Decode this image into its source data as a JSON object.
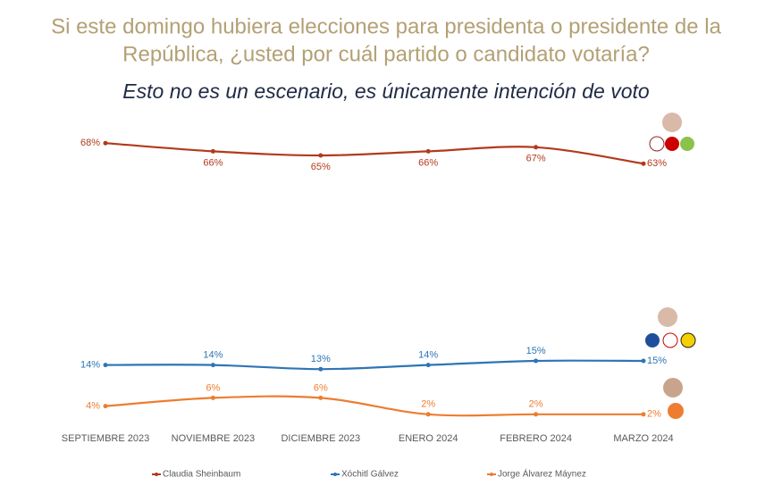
{
  "chart_data": {
    "type": "line",
    "title": "Si este domingo hubiera elecciones para presidenta o presidente de la República, ¿usted por cuál partido o candidato votaría?",
    "subtitle": "Esto no es un escenario, es únicamente intención de voto",
    "categories": [
      "SEPTIEMBRE 2023",
      "NOVIEMBRE 2023",
      "DICIEMBRE 2023",
      "ENERO 2024",
      "FEBRERO 2024",
      "MARZO 2024"
    ],
    "ylim": [
      0,
      70
    ],
    "series": [
      {
        "name": "Claudia Sheinbaum",
        "color": "#b23a1c",
        "values": [
          68,
          66,
          65,
          66,
          67,
          63
        ],
        "value_labels": [
          "68%",
          "66%",
          "65%",
          "66%",
          "67%",
          "63%"
        ]
      },
      {
        "name": "Xóchitl Gálvez",
        "color": "#2e75b6",
        "values": [
          14,
          14,
          13,
          14,
          15,
          15
        ],
        "value_labels": [
          "14%",
          "14%",
          "13%",
          "14%",
          "15%",
          "15%"
        ]
      },
      {
        "name": "Jorge Álvarez Máynez",
        "color": "#ed7d31",
        "values": [
          4,
          6,
          6,
          2,
          2,
          2
        ],
        "value_labels": [
          "4%",
          "6%",
          "6%",
          "2%",
          "2%",
          "2%"
        ]
      }
    ]
  }
}
